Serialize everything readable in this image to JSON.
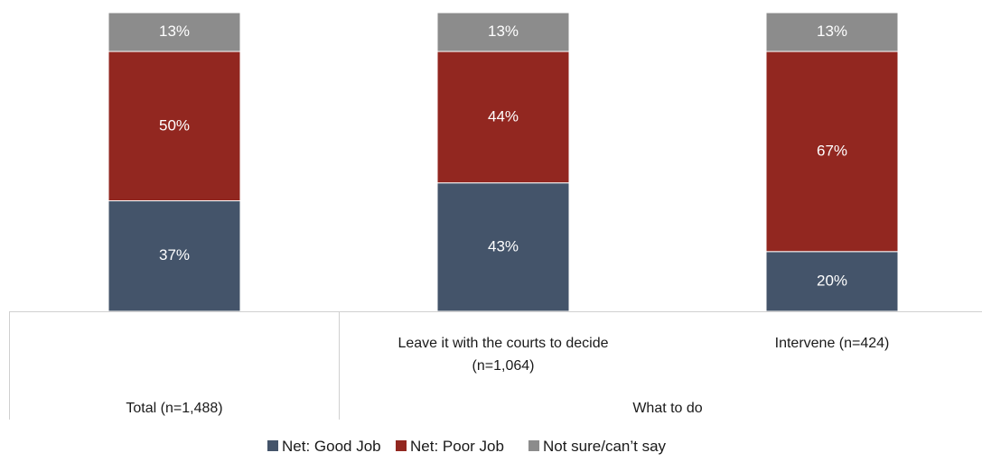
{
  "chart_data": {
    "type": "bar",
    "stacked": true,
    "percent_stacked": true,
    "categories": [
      "Total (n=1,488)",
      "Leave it with the courts to decide (n=1,064)",
      "Intervene (n=424)"
    ],
    "category_lines": [
      [
        "Total (n=1,488)"
      ],
      [
        "Leave it with the courts to decide",
        "(n=1,064)"
      ],
      [
        "Intervene (n=424)"
      ]
    ],
    "group_labels": [
      {
        "label": "What to do",
        "covers": [
          "Leave it with the courts to decide (n=1,064)",
          "Intervene (n=424)"
        ]
      }
    ],
    "series": [
      {
        "name": "Net: Good Job",
        "values": [
          37,
          43,
          20
        ],
        "labels": [
          "37%",
          "43%",
          "20%"
        ],
        "color": "#44546a"
      },
      {
        "name": "Net: Poor Job",
        "values": [
          50,
          44,
          67
        ],
        "labels": [
          "50%",
          "44%",
          "67%"
        ],
        "color": "#922720"
      },
      {
        "name": "Not sure/can’t say",
        "values": [
          13,
          13,
          13
        ],
        "labels": [
          "13%",
          "13%",
          "13%"
        ],
        "color": "#8c8c8c"
      }
    ],
    "ylim": [
      0,
      100
    ],
    "title": "",
    "xlabel": "",
    "ylabel": "",
    "grid": false,
    "legend_position": "bottom"
  }
}
